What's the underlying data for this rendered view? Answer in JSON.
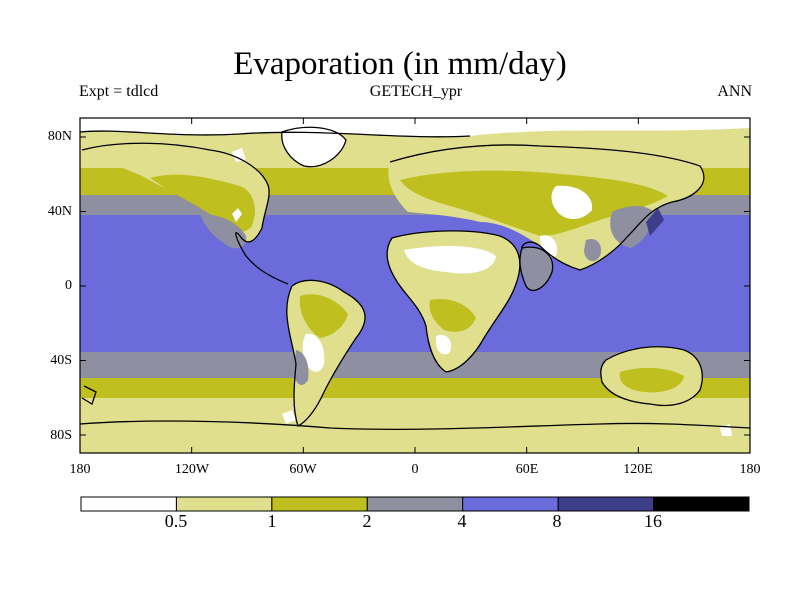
{
  "title": "Evaporation (in mm/day)",
  "subtitle_left": "Expt = tdlcd",
  "subtitle_center": "GETECH_ypr",
  "subtitle_right": "ANN",
  "lat_labels": [
    "80N",
    "40N",
    "0",
    "40S",
    "80S"
  ],
  "lon_labels": [
    "180",
    "120W",
    "60W",
    "0",
    "60E",
    "120E",
    "180"
  ],
  "colorbar": {
    "colors": [
      "#ffffff",
      "#e0df8e",
      "#bfbf1f",
      "#8f8fa2",
      "#6b6bdb",
      "#3d3d8a",
      "#000000"
    ],
    "labels": [
      "0.5",
      "1",
      "2",
      "4",
      "8",
      "16"
    ]
  }
}
